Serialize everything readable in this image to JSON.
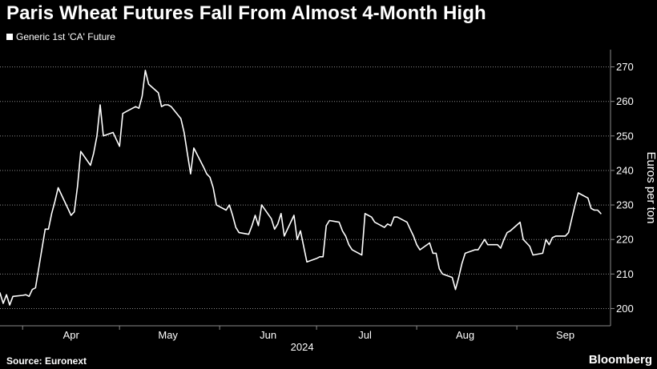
{
  "title": "Paris Wheat Futures Fall From Almost 4-Month High",
  "source": "Source: Euronext",
  "brand": "Bloomberg",
  "colors": {
    "background": "#000000",
    "line": "#ffffff",
    "text": "#ffffff",
    "grid": "#8a8a8a"
  },
  "chart_data": {
    "type": "line",
    "ylabel": "Euros per ton",
    "ylim": [
      195,
      275
    ],
    "yticks": [
      200,
      210,
      220,
      230,
      240,
      250,
      260,
      270
    ],
    "xlim": [
      "2024-03-25",
      "2024-09-30"
    ],
    "x_ticks": [
      {
        "label": "Apr",
        "date": "2024-04-01"
      },
      {
        "label": "May",
        "date": "2024-05-01"
      },
      {
        "label": "Jun",
        "date": "2024-06-01"
      },
      {
        "label": "Jul",
        "date": "2024-07-01"
      },
      {
        "label": "Aug",
        "date": "2024-08-01"
      },
      {
        "label": "Sep",
        "date": "2024-09-01"
      }
    ],
    "x_year_label": "2024",
    "grid": "horizontal dotted",
    "legend_position": "top-left",
    "series": [
      {
        "name": "Generic 1st 'CA' Future",
        "data": [
          [
            "2024-03-25",
            204.5
          ],
          [
            "2024-03-26",
            201.5
          ],
          [
            "2024-03-27",
            204.0
          ],
          [
            "2024-03-28",
            201.0
          ],
          [
            "2024-03-29",
            203.5
          ],
          [
            "2024-04-01",
            203.8
          ],
          [
            "2024-04-02",
            204.0
          ],
          [
            "2024-04-03",
            203.5
          ],
          [
            "2024-04-04",
            205.5
          ],
          [
            "2024-04-05",
            206.0
          ],
          [
            "2024-04-08",
            223.0
          ],
          [
            "2024-04-09",
            223.0
          ],
          [
            "2024-04-10",
            227.5
          ],
          [
            "2024-04-11",
            231.0
          ],
          [
            "2024-04-12",
            235.0
          ],
          [
            "2024-04-15",
            229.0
          ],
          [
            "2024-04-16",
            227.0
          ],
          [
            "2024-04-17",
            228.0
          ],
          [
            "2024-04-18",
            235.5
          ],
          [
            "2024-04-19",
            245.5
          ],
          [
            "2024-04-22",
            241.5
          ],
          [
            "2024-04-23",
            245.0
          ],
          [
            "2024-04-24",
            250.0
          ],
          [
            "2024-04-25",
            259.0
          ],
          [
            "2024-04-26",
            250.0
          ],
          [
            "2024-04-29",
            251.0
          ],
          [
            "2024-04-30",
            249.0
          ],
          [
            "2024-05-01",
            247.0
          ],
          [
            "2024-05-02",
            256.5
          ],
          [
            "2024-05-03",
            257.0
          ],
          [
            "2024-05-06",
            258.5
          ],
          [
            "2024-05-07",
            258.0
          ],
          [
            "2024-05-08",
            261.5
          ],
          [
            "2024-05-09",
            269.0
          ],
          [
            "2024-05-10",
            265.0
          ],
          [
            "2024-05-13",
            262.5
          ],
          [
            "2024-05-14",
            258.5
          ],
          [
            "2024-05-15",
            259.0
          ],
          [
            "2024-05-16",
            259.0
          ],
          [
            "2024-05-17",
            258.5
          ],
          [
            "2024-05-20",
            255.0
          ],
          [
            "2024-05-21",
            251.0
          ],
          [
            "2024-05-22",
            245.0
          ],
          [
            "2024-05-23",
            239.0
          ],
          [
            "2024-05-24",
            246.5
          ],
          [
            "2024-05-27",
            241.0
          ],
          [
            "2024-05-28",
            239.0
          ],
          [
            "2024-05-29",
            238.0
          ],
          [
            "2024-05-30",
            235.0
          ],
          [
            "2024-05-31",
            230.0
          ],
          [
            "2024-06-03",
            228.5
          ],
          [
            "2024-06-04",
            230.0
          ],
          [
            "2024-06-05",
            227.0
          ],
          [
            "2024-06-06",
            223.5
          ],
          [
            "2024-06-07",
            222.0
          ],
          [
            "2024-06-10",
            221.5
          ],
          [
            "2024-06-11",
            224.0
          ],
          [
            "2024-06-12",
            227.0
          ],
          [
            "2024-06-13",
            224.0
          ],
          [
            "2024-06-14",
            230.0
          ],
          [
            "2024-06-17",
            226.0
          ],
          [
            "2024-06-18",
            223.0
          ],
          [
            "2024-06-19",
            224.5
          ],
          [
            "2024-06-20",
            227.5
          ],
          [
            "2024-06-21",
            221.0
          ],
          [
            "2024-06-24",
            227.0
          ],
          [
            "2024-06-25",
            220.0
          ],
          [
            "2024-06-26",
            222.5
          ],
          [
            "2024-06-27",
            218.0
          ],
          [
            "2024-06-28",
            213.5
          ],
          [
            "2024-07-01",
            214.5
          ],
          [
            "2024-07-02",
            215.0
          ],
          [
            "2024-07-03",
            215.0
          ],
          [
            "2024-07-04",
            224.0
          ],
          [
            "2024-07-05",
            225.5
          ],
          [
            "2024-07-08",
            225.0
          ],
          [
            "2024-07-09",
            222.5
          ],
          [
            "2024-07-10",
            221.0
          ],
          [
            "2024-07-11",
            218.5
          ],
          [
            "2024-07-12",
            217.0
          ],
          [
            "2024-07-15",
            215.5
          ],
          [
            "2024-07-16",
            227.5
          ],
          [
            "2024-07-17",
            227.0
          ],
          [
            "2024-07-18",
            226.5
          ],
          [
            "2024-07-19",
            225.0
          ],
          [
            "2024-07-22",
            223.5
          ],
          [
            "2024-07-23",
            224.5
          ],
          [
            "2024-07-24",
            224.0
          ],
          [
            "2024-07-25",
            226.5
          ],
          [
            "2024-07-26",
            226.5
          ],
          [
            "2024-07-29",
            225.0
          ],
          [
            "2024-07-30",
            223.0
          ],
          [
            "2024-07-31",
            221.0
          ],
          [
            "2024-08-01",
            218.5
          ],
          [
            "2024-08-02",
            217.0
          ],
          [
            "2024-08-05",
            219.0
          ],
          [
            "2024-08-06",
            216.0
          ],
          [
            "2024-08-07",
            216.0
          ],
          [
            "2024-08-08",
            211.5
          ],
          [
            "2024-08-09",
            210.0
          ],
          [
            "2024-08-12",
            209.0
          ],
          [
            "2024-08-13",
            205.5
          ],
          [
            "2024-08-14",
            209.0
          ],
          [
            "2024-08-15",
            213.0
          ],
          [
            "2024-08-16",
            216.0
          ],
          [
            "2024-08-19",
            217.0
          ],
          [
            "2024-08-20",
            217.0
          ],
          [
            "2024-08-21",
            218.5
          ],
          [
            "2024-08-22",
            220.0
          ],
          [
            "2024-08-23",
            218.5
          ],
          [
            "2024-08-26",
            218.5
          ],
          [
            "2024-08-27",
            217.5
          ],
          [
            "2024-08-28",
            220.0
          ],
          [
            "2024-08-29",
            222.0
          ],
          [
            "2024-08-30",
            222.5
          ],
          [
            "2024-09-02",
            225.0
          ],
          [
            "2024-09-03",
            220.0
          ],
          [
            "2024-09-04",
            219.0
          ],
          [
            "2024-09-05",
            218.0
          ],
          [
            "2024-09-06",
            215.5
          ],
          [
            "2024-09-09",
            216.0
          ],
          [
            "2024-09-10",
            220.0
          ],
          [
            "2024-09-11",
            218.5
          ],
          [
            "2024-09-12",
            220.5
          ],
          [
            "2024-09-13",
            221.0
          ],
          [
            "2024-09-16",
            221.0
          ],
          [
            "2024-09-17",
            222.0
          ],
          [
            "2024-09-18",
            226.0
          ],
          [
            "2024-09-19",
            230.0
          ],
          [
            "2024-09-20",
            233.5
          ],
          [
            "2024-09-23",
            232.0
          ],
          [
            "2024-09-24",
            229.0
          ],
          [
            "2024-09-25",
            228.5
          ],
          [
            "2024-09-26",
            228.5
          ],
          [
            "2024-09-27",
            227.5
          ]
        ]
      }
    ]
  }
}
